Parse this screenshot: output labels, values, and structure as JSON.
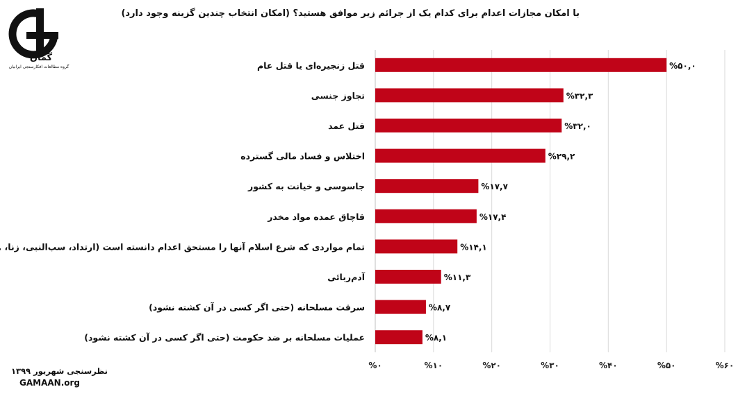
{
  "header": {
    "title": "با امکان مجازات اعدام برای کدام یک از جرائم زیر موافق هستید؟ (امکان انتخاب چندین گزینه وجود دارد)"
  },
  "logo": {
    "name": "گمان",
    "subtitle": "گروه مطالعات افکارسنجی ایرانیان"
  },
  "footer": {
    "survey": "نظرسنجی شهریور ۱۳۹۹",
    "site": "GAMAAN.org"
  },
  "colors": {
    "bar": "#c00418",
    "grid": "#d9d9d9"
  },
  "chart_data": {
    "type": "bar",
    "orientation": "horizontal",
    "categories": [
      "قتل زنجیره‌ای یا قتل عام",
      "تجاوز جنسی",
      "قتل عمد",
      "اختلاس و فساد مالی گسترده",
      "جاسوسی و خیانت به کشور",
      "قاچاق عمده مواد مخدر",
      "تمام مواردی که شرع اسلام آنها را مستحق اعدام دانسته است (ارتداد، سب‌النبی، زنا، ...)",
      "آدم‌ربائی",
      "سرقت مسلحانه (حتی اگر کسی در آن کشته نشود)",
      "عملیات مسلحانه بر ضد حکومت (حتی اگر کسی در آن کشته نشود)"
    ],
    "values": [
      50.0,
      32.3,
      32.0,
      29.2,
      17.7,
      17.4,
      14.1,
      11.3,
      8.7,
      8.1
    ],
    "data_labels": [
      "%۵۰,۰",
      "%۳۲,۳",
      "%۳۲,۰",
      "%۲۹,۲",
      "%۱۷,۷",
      "%۱۷,۴",
      "%۱۴,۱",
      "%۱۱,۳",
      "%۸,۷",
      "%۸,۱"
    ],
    "xlim": [
      0,
      60
    ],
    "xticks": [
      0,
      10,
      20,
      30,
      40,
      50,
      60
    ],
    "xtick_labels": [
      "%۰",
      "%۱۰",
      "%۲۰",
      "%۳۰",
      "%۴۰",
      "%۵۰",
      "%۶۰"
    ],
    "grid": true
  }
}
